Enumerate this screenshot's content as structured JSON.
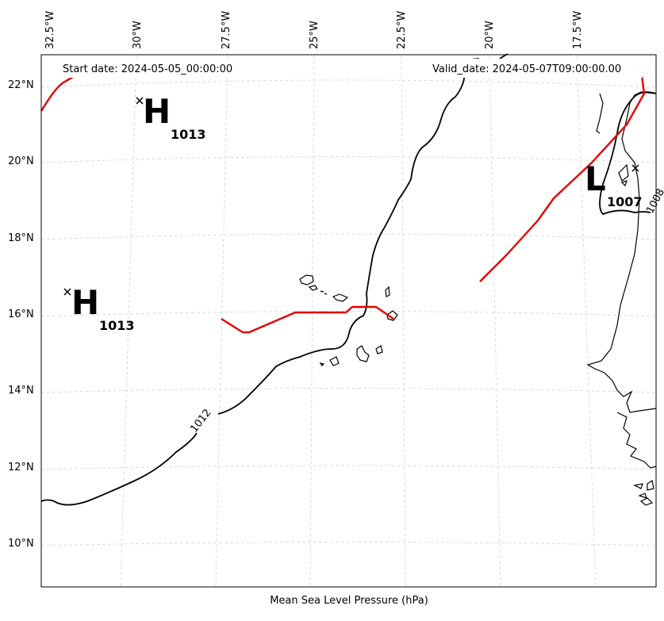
{
  "header": {
    "start_date": "Start date: 2024-05-05_00:00:00",
    "valid_date": "Valid_date: 2024-05-07T09:00:00.00"
  },
  "caption": "Mean Sea Level Pressure (hPa)",
  "lon_ticks": [
    "32.5°W",
    "30°W",
    "27.5°W",
    "25°W",
    "22.5°W",
    "20°W",
    "17.5°W"
  ],
  "lat_ticks": [
    "22°N",
    "20°N",
    "18°N",
    "16°N",
    "14°N",
    "12°N",
    "10°N"
  ],
  "pressure_centers": [
    {
      "type": "H",
      "value": "1013",
      "lon": -29.6,
      "lat": 21.4
    },
    {
      "type": "H",
      "value": "1013",
      "lon": -31.6,
      "lat": 16.5
    },
    {
      "type": "L",
      "value": "1007",
      "lon": -16.0,
      "lat": 19.7
    }
  ],
  "isobars": [
    {
      "label": "1012"
    },
    {
      "label": "1008"
    }
  ],
  "colors": {
    "isobar": "#000000",
    "trough": "#e60000",
    "coastline": "#000000",
    "grid": "#cccccc"
  }
}
